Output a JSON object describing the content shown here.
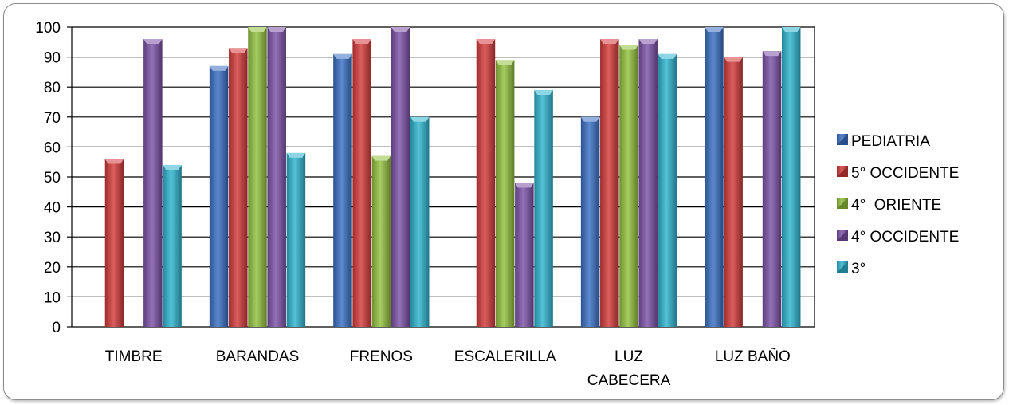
{
  "chart_data": {
    "type": "bar",
    "title": "",
    "xlabel": "",
    "ylabel": "",
    "ylim": [
      0,
      100
    ],
    "yticks": [
      0,
      10,
      20,
      30,
      40,
      50,
      60,
      70,
      80,
      90,
      100
    ],
    "grid": true,
    "legend_position": "right",
    "categories": [
      "TIMBRE",
      "BARANDAS",
      "FRENOS",
      "ESCALERILLA",
      "LUZ CABECERA",
      "LUZ BAÑO"
    ],
    "category_lines": [
      [
        "TIMBRE"
      ],
      [
        "BARANDAS"
      ],
      [
        "FRENOS"
      ],
      [
        "ESCALERILLA"
      ],
      [
        "LUZ",
        "CABECERA"
      ],
      [
        "LUZ BAÑO"
      ]
    ],
    "series": [
      {
        "name": "PEDIATRIA",
        "color": "#3a6fc4",
        "values": [
          0,
          87,
          91,
          0,
          70,
          100
        ]
      },
      {
        "name": "5° OCCIDENTE",
        "color": "#d43b3b",
        "values": [
          56,
          93,
          96,
          96,
          96,
          90
        ]
      },
      {
        "name": "4°  ORIENTE",
        "color": "#93c13e",
        "values": [
          0,
          100,
          57,
          89,
          94,
          0
        ]
      },
      {
        "name": "4° OCCIDENTE",
        "color": "#7d52a8",
        "values": [
          96,
          100,
          100,
          48,
          96,
          92
        ]
      },
      {
        "name": "3°",
        "color": "#2fb4cf",
        "values": [
          54,
          58,
          70,
          79,
          91,
          100
        ]
      }
    ]
  }
}
